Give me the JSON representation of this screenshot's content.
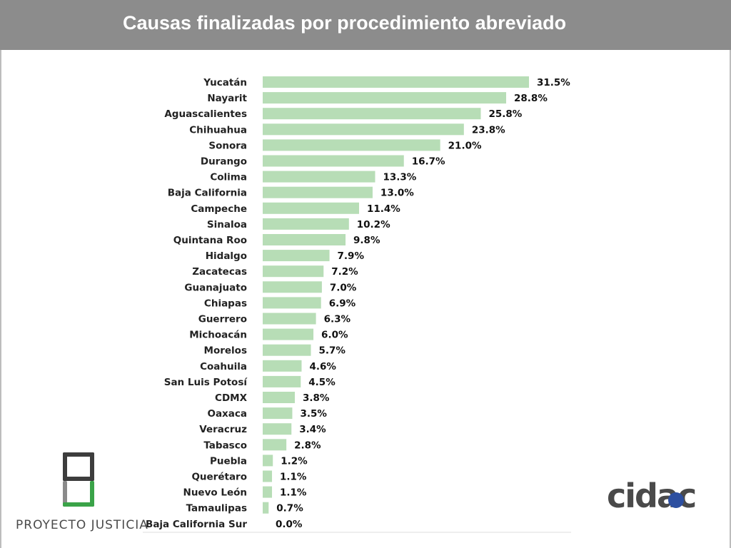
{
  "header": {
    "title": "Causas finalizadas por procedimiento abreviado"
  },
  "colors": {
    "header_bg": "#8c8c8c",
    "bar": "#b7ddb6",
    "pj_green": "#3aa348",
    "pj_dark": "#3d3d3d",
    "cidac_blue": "#2d4fa0"
  },
  "logos": {
    "left_text": "PROYECTO JUSTICIA",
    "right_text": "cidac"
  },
  "chart_data": {
    "type": "bar",
    "orientation": "horizontal",
    "title": "",
    "xlabel": "",
    "ylabel": "",
    "xlim": [
      0,
      31.5
    ],
    "grid": false,
    "categories": [
      "Yucatán",
      "Nayarit",
      "Aguascalientes",
      "Chihuahua",
      "Sonora",
      "Durango",
      "Colima",
      "Baja California",
      "Campeche",
      "Sinaloa",
      "Quintana Roo",
      "Hidalgo",
      "Zacatecas",
      "Guanajuato",
      "Chiapas",
      "Guerrero",
      "Michoacán",
      "Morelos",
      "Coahuila",
      "San Luis Potosí",
      "CDMX",
      "Oaxaca",
      "Veracruz",
      "Tabasco",
      "Puebla",
      "Querétaro",
      "Nuevo León",
      "Tamaulipas",
      "Baja California Sur"
    ],
    "values": [
      31.5,
      28.8,
      25.8,
      23.8,
      21.0,
      16.7,
      13.3,
      13.0,
      11.4,
      10.2,
      9.8,
      7.9,
      7.2,
      7.0,
      6.9,
      6.3,
      6.0,
      5.7,
      4.6,
      4.5,
      3.8,
      3.5,
      3.4,
      2.8,
      1.2,
      1.1,
      1.1,
      0.7,
      0.0
    ],
    "value_labels": [
      "31.5%",
      "28.8%",
      "25.8%",
      "23.8%",
      "21.0%",
      "16.7%",
      "13.3%",
      "13.0%",
      "11.4%",
      "10.2%",
      "9.8%",
      "7.9%",
      "7.2%",
      "7.0%",
      "6.9%",
      "6.3%",
      "6.0%",
      "5.7%",
      "4.6%",
      "4.5%",
      "3.8%",
      "3.5%",
      "3.4%",
      "2.8%",
      "1.2%",
      "1.1%",
      "1.1%",
      "0.7%",
      "0.0%"
    ]
  }
}
